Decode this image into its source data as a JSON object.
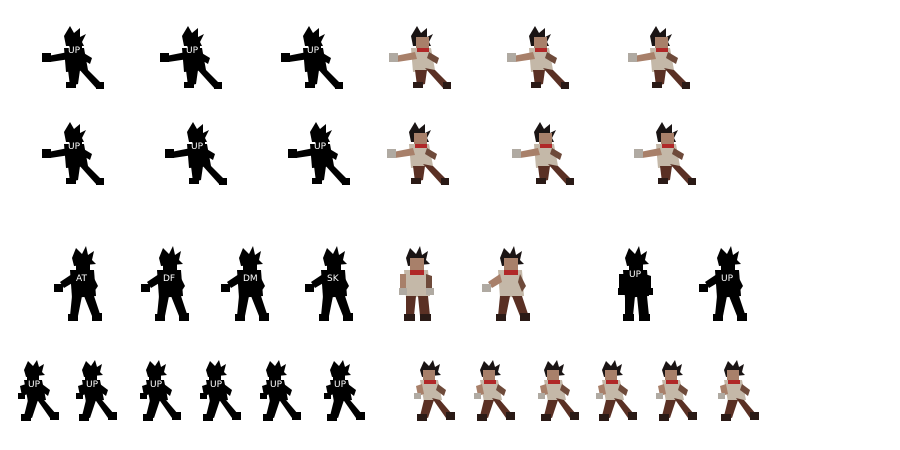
{
  "sprite_sheet": {
    "character": "spiky-haired brawler",
    "silhouette_color": "#000000",
    "colors": {
      "skin": "#a8806a",
      "skin_shade": "#6e4a3a",
      "hair": "#1a1414",
      "shirt": "#c4b8a8",
      "pants": "#5a3024",
      "scarf": "#b02828",
      "boots": "#2a1a16",
      "fist": "#b0aaa2"
    },
    "rows": [
      {
        "frames": [
          {
            "style": "silhouette",
            "pose": "punch",
            "label": "UP"
          },
          {
            "style": "silhouette",
            "pose": "punch",
            "label": "UP"
          },
          {
            "style": "silhouette",
            "pose": "punch",
            "label": "UP"
          },
          {
            "style": "color",
            "pose": "punch",
            "label": ""
          },
          {
            "style": "color",
            "pose": "punch",
            "label": ""
          },
          {
            "style": "color",
            "pose": "punch",
            "label": ""
          }
        ]
      },
      {
        "frames": [
          {
            "style": "silhouette",
            "pose": "punch",
            "label": "UP"
          },
          {
            "style": "silhouette",
            "pose": "punch",
            "label": "UP"
          },
          {
            "style": "silhouette",
            "pose": "punch",
            "label": "UP"
          },
          {
            "style": "color",
            "pose": "punch",
            "label": ""
          },
          {
            "style": "color",
            "pose": "punch",
            "label": ""
          },
          {
            "style": "color",
            "pose": "punch",
            "label": ""
          }
        ]
      },
      {
        "frames": [
          {
            "style": "silhouette",
            "pose": "stance",
            "label": "AT"
          },
          {
            "style": "silhouette",
            "pose": "stance",
            "label": "DF"
          },
          {
            "style": "silhouette",
            "pose": "stance",
            "label": "DM"
          },
          {
            "style": "silhouette",
            "pose": "stance",
            "label": "SK"
          },
          {
            "style": "color",
            "pose": "idle",
            "label": ""
          },
          {
            "style": "color",
            "pose": "stance",
            "label": ""
          },
          {
            "style": "silhouette",
            "pose": "idle",
            "label": "UP"
          },
          {
            "style": "silhouette",
            "pose": "stance",
            "label": "UP"
          }
        ]
      },
      {
        "frames": [
          {
            "style": "silhouette",
            "pose": "run",
            "label": "UP"
          },
          {
            "style": "silhouette",
            "pose": "run",
            "label": "UP"
          },
          {
            "style": "silhouette",
            "pose": "run",
            "label": "UP"
          },
          {
            "style": "silhouette",
            "pose": "run",
            "label": "UP"
          },
          {
            "style": "silhouette",
            "pose": "run",
            "label": "UP"
          },
          {
            "style": "silhouette",
            "pose": "run",
            "label": "UP"
          },
          {
            "style": "color",
            "pose": "run",
            "label": ""
          },
          {
            "style": "color",
            "pose": "run",
            "label": ""
          },
          {
            "style": "color",
            "pose": "run",
            "label": ""
          },
          {
            "style": "color",
            "pose": "run",
            "label": ""
          },
          {
            "style": "color",
            "pose": "run",
            "label": ""
          },
          {
            "style": "color",
            "pose": "run",
            "label": ""
          }
        ]
      }
    ]
  }
}
